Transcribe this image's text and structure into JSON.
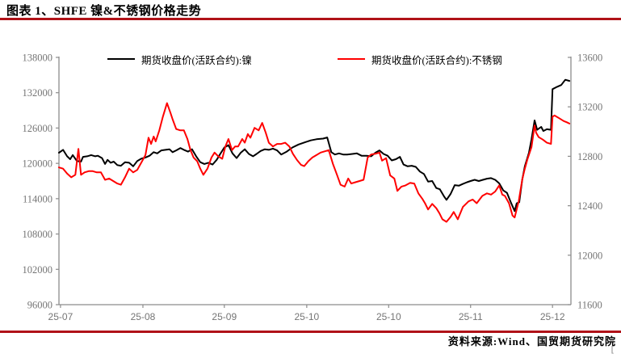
{
  "title": "图表 1、SHFE 镍&不锈钢价格走势",
  "source_note": "资料来源:Wind、国贸期货研究院",
  "corner_glyph": "[",
  "colors": {
    "accent_red": "#b01218",
    "nickel": "#000000",
    "stainless": "#ff0000",
    "axis": "#8c8c8c",
    "tick_label": "#757575"
  },
  "chart_data": {
    "type": "line",
    "title": "SHFE 镍&不锈钢价格走势",
    "grid": false,
    "legend_position": "top",
    "legend": [
      {
        "id": "nickel",
        "label": "期货收盘价(活跃合约):镍",
        "color": "#000000"
      },
      {
        "id": "stainless",
        "label": "期货收盘价(活跃合约):不锈钢",
        "color": "#ff0000"
      }
    ],
    "left_axis": {
      "min": 96000,
      "max": 138000,
      "step": 6000,
      "ticks": [
        138000,
        132000,
        126000,
        120000,
        114000,
        108000,
        102000,
        96000
      ]
    },
    "right_axis": {
      "min": 11600,
      "max": 13600,
      "step": 400,
      "ticks": [
        13600,
        13200,
        12800,
        12400,
        12000,
        11600
      ]
    },
    "x_tick_labels": [
      "25-07",
      "25-08",
      "25-09",
      "25-10",
      "25-10",
      "25-11",
      "25-12"
    ],
    "x_tick_positions": [
      0.003,
      0.164,
      0.323,
      0.484,
      0.644,
      0.804,
      0.964
    ],
    "series": [
      {
        "id": "nickel",
        "name": "期货收盘价(活跃合约):镍",
        "axis": "left",
        "color": "#000000",
        "points": [
          [
            0.0,
            121800
          ],
          [
            0.008,
            122300
          ],
          [
            0.016,
            121200
          ],
          [
            0.022,
            120700
          ],
          [
            0.027,
            121400
          ],
          [
            0.035,
            120400
          ],
          [
            0.043,
            120300
          ],
          [
            0.047,
            121100
          ],
          [
            0.055,
            121200
          ],
          [
            0.063,
            121400
          ],
          [
            0.071,
            121200
          ],
          [
            0.076,
            121300
          ],
          [
            0.084,
            120900
          ],
          [
            0.09,
            119900
          ],
          [
            0.095,
            120600
          ],
          [
            0.101,
            120100
          ],
          [
            0.107,
            120300
          ],
          [
            0.114,
            119700
          ],
          [
            0.121,
            119600
          ],
          [
            0.129,
            120200
          ],
          [
            0.137,
            120100
          ],
          [
            0.145,
            119500
          ],
          [
            0.153,
            120400
          ],
          [
            0.161,
            120800
          ],
          [
            0.169,
            121000
          ],
          [
            0.177,
            121300
          ],
          [
            0.185,
            121900
          ],
          [
            0.192,
            121700
          ],
          [
            0.2,
            122200
          ],
          [
            0.208,
            122300
          ],
          [
            0.216,
            122400
          ],
          [
            0.222,
            121900
          ],
          [
            0.229,
            122200
          ],
          [
            0.237,
            122600
          ],
          [
            0.244,
            122300
          ],
          [
            0.252,
            122000
          ],
          [
            0.26,
            122400
          ],
          [
            0.268,
            121200
          ],
          [
            0.276,
            120200
          ],
          [
            0.284,
            119900
          ],
          [
            0.292,
            120100
          ],
          [
            0.3,
            119800
          ],
          [
            0.308,
            120600
          ],
          [
            0.315,
            121600
          ],
          [
            0.323,
            122700
          ],
          [
            0.331,
            123100
          ],
          [
            0.339,
            121700
          ],
          [
            0.347,
            120900
          ],
          [
            0.355,
            121800
          ],
          [
            0.363,
            122400
          ],
          [
            0.371,
            121600
          ],
          [
            0.379,
            121200
          ],
          [
            0.386,
            121600
          ],
          [
            0.394,
            122100
          ],
          [
            0.402,
            122400
          ],
          [
            0.41,
            122300
          ],
          [
            0.418,
            122500
          ],
          [
            0.426,
            122200
          ],
          [
            0.434,
            121500
          ],
          [
            0.445,
            122000
          ],
          [
            0.456,
            122700
          ],
          [
            0.468,
            123200
          ],
          [
            0.481,
            123600
          ],
          [
            0.492,
            123900
          ],
          [
            0.503,
            124100
          ],
          [
            0.516,
            124200
          ],
          [
            0.524,
            124400
          ],
          [
            0.532,
            121900
          ],
          [
            0.539,
            121500
          ],
          [
            0.547,
            121700
          ],
          [
            0.555,
            121500
          ],
          [
            0.563,
            121500
          ],
          [
            0.573,
            121600
          ],
          [
            0.582,
            121700
          ],
          [
            0.591,
            121300
          ],
          [
            0.601,
            121300
          ],
          [
            0.61,
            121200
          ],
          [
            0.618,
            121800
          ],
          [
            0.626,
            122200
          ],
          [
            0.634,
            121600
          ],
          [
            0.642,
            121300
          ],
          [
            0.65,
            120500
          ],
          [
            0.658,
            120700
          ],
          [
            0.666,
            121100
          ],
          [
            0.673,
            119800
          ],
          [
            0.681,
            119500
          ],
          [
            0.689,
            119600
          ],
          [
            0.697,
            119400
          ],
          [
            0.705,
            118600
          ],
          [
            0.713,
            118200
          ],
          [
            0.721,
            116900
          ],
          [
            0.729,
            117000
          ],
          [
            0.737,
            115800
          ],
          [
            0.744,
            115600
          ],
          [
            0.752,
            114400
          ],
          [
            0.757,
            113800
          ],
          [
            0.765,
            114800
          ],
          [
            0.773,
            116300
          ],
          [
            0.781,
            116200
          ],
          [
            0.789,
            116500
          ],
          [
            0.797,
            116800
          ],
          [
            0.804,
            117000
          ],
          [
            0.812,
            117200
          ],
          [
            0.82,
            117000
          ],
          [
            0.828,
            117200
          ],
          [
            0.836,
            117400
          ],
          [
            0.844,
            117500
          ],
          [
            0.852,
            117200
          ],
          [
            0.86,
            116600
          ],
          [
            0.868,
            115400
          ],
          [
            0.875,
            115000
          ],
          [
            0.882,
            113500
          ],
          [
            0.89,
            111900
          ],
          [
            0.894,
            113200
          ],
          [
            0.899,
            113400
          ],
          [
            0.905,
            117300
          ],
          [
            0.91,
            119500
          ],
          [
            0.918,
            121800
          ],
          [
            0.923,
            124100
          ],
          [
            0.929,
            127300
          ],
          [
            0.934,
            125700
          ],
          [
            0.942,
            126200
          ],
          [
            0.946,
            125500
          ],
          [
            0.953,
            125800
          ],
          [
            0.961,
            125700
          ],
          [
            0.964,
            132600
          ],
          [
            0.973,
            133000
          ],
          [
            0.981,
            133300
          ],
          [
            0.989,
            134200
          ],
          [
            0.997,
            134000
          ]
        ]
      },
      {
        "id": "stainless",
        "name": "期货收盘价(活跃合约):不锈钢",
        "axis": "right",
        "color": "#ff0000",
        "points": [
          [
            0.0,
            12710
          ],
          [
            0.008,
            12700
          ],
          [
            0.016,
            12660
          ],
          [
            0.024,
            12630
          ],
          [
            0.032,
            12650
          ],
          [
            0.038,
            12860
          ],
          [
            0.043,
            12650
          ],
          [
            0.05,
            12670
          ],
          [
            0.058,
            12680
          ],
          [
            0.066,
            12680
          ],
          [
            0.074,
            12670
          ],
          [
            0.082,
            12670
          ],
          [
            0.09,
            12610
          ],
          [
            0.098,
            12620
          ],
          [
            0.106,
            12600
          ],
          [
            0.114,
            12580
          ],
          [
            0.121,
            12570
          ],
          [
            0.129,
            12630
          ],
          [
            0.137,
            12700
          ],
          [
            0.145,
            12670
          ],
          [
            0.153,
            12690
          ],
          [
            0.161,
            12750
          ],
          [
            0.169,
            12810
          ],
          [
            0.175,
            12950
          ],
          [
            0.18,
            12900
          ],
          [
            0.185,
            12960
          ],
          [
            0.189,
            12920
          ],
          [
            0.196,
            13010
          ],
          [
            0.203,
            13120
          ],
          [
            0.211,
            13230
          ],
          [
            0.218,
            13150
          ],
          [
            0.222,
            13100
          ],
          [
            0.229,
            13020
          ],
          [
            0.237,
            13010
          ],
          [
            0.244,
            13010
          ],
          [
            0.251,
            12940
          ],
          [
            0.257,
            12850
          ],
          [
            0.263,
            12790
          ],
          [
            0.27,
            12760
          ],
          [
            0.276,
            12700
          ],
          [
            0.282,
            12650
          ],
          [
            0.29,
            12700
          ],
          [
            0.298,
            12790
          ],
          [
            0.304,
            12830
          ],
          [
            0.311,
            12800
          ],
          [
            0.319,
            12780
          ],
          [
            0.325,
            12880
          ],
          [
            0.331,
            12940
          ],
          [
            0.338,
            12850
          ],
          [
            0.344,
            12880
          ],
          [
            0.35,
            12880
          ],
          [
            0.358,
            12940
          ],
          [
            0.363,
            12910
          ],
          [
            0.369,
            12980
          ],
          [
            0.374,
            12950
          ],
          [
            0.382,
            13030
          ],
          [
            0.39,
            13010
          ],
          [
            0.397,
            13070
          ],
          [
            0.404,
            12990
          ],
          [
            0.41,
            12910
          ],
          [
            0.418,
            12880
          ],
          [
            0.426,
            12900
          ],
          [
            0.434,
            12900
          ],
          [
            0.442,
            12910
          ],
          [
            0.45,
            12880
          ],
          [
            0.457,
            12820
          ],
          [
            0.465,
            12770
          ],
          [
            0.473,
            12730
          ],
          [
            0.479,
            12720
          ],
          [
            0.487,
            12760
          ],
          [
            0.495,
            12790
          ],
          [
            0.503,
            12810
          ],
          [
            0.511,
            12830
          ],
          [
            0.519,
            12840
          ],
          [
            0.527,
            12850
          ],
          [
            0.535,
            12740
          ],
          [
            0.543,
            12650
          ],
          [
            0.55,
            12570
          ],
          [
            0.558,
            12555
          ],
          [
            0.565,
            12620
          ],
          [
            0.571,
            12580
          ],
          [
            0.579,
            12590
          ],
          [
            0.587,
            12600
          ],
          [
            0.595,
            12610
          ],
          [
            0.603,
            12790
          ],
          [
            0.61,
            12815
          ],
          [
            0.618,
            12820
          ],
          [
            0.626,
            12830
          ],
          [
            0.631,
            12765
          ],
          [
            0.639,
            12785
          ],
          [
            0.647,
            12645
          ],
          [
            0.655,
            12620
          ],
          [
            0.661,
            12520
          ],
          [
            0.669,
            12555
          ],
          [
            0.677,
            12565
          ],
          [
            0.686,
            12585
          ],
          [
            0.694,
            12580
          ],
          [
            0.702,
            12500
          ],
          [
            0.71,
            12455
          ],
          [
            0.715,
            12420
          ],
          [
            0.721,
            12370
          ],
          [
            0.729,
            12415
          ],
          [
            0.737,
            12380
          ],
          [
            0.743,
            12340
          ],
          [
            0.749,
            12290
          ],
          [
            0.757,
            12270
          ],
          [
            0.765,
            12310
          ],
          [
            0.771,
            12350
          ],
          [
            0.779,
            12290
          ],
          [
            0.789,
            12390
          ],
          [
            0.8,
            12435
          ],
          [
            0.808,
            12450
          ],
          [
            0.816,
            12420
          ],
          [
            0.827,
            12480
          ],
          [
            0.836,
            12500
          ],
          [
            0.844,
            12490
          ],
          [
            0.852,
            12515
          ],
          [
            0.86,
            12565
          ],
          [
            0.866,
            12490
          ],
          [
            0.871,
            12480
          ],
          [
            0.879,
            12420
          ],
          [
            0.886,
            12320
          ],
          [
            0.89,
            12305
          ],
          [
            0.898,
            12435
          ],
          [
            0.905,
            12615
          ],
          [
            0.91,
            12700
          ],
          [
            0.915,
            12775
          ],
          [
            0.923,
            12875
          ],
          [
            0.929,
            13050
          ],
          [
            0.932,
            12990
          ],
          [
            0.937,
            12955
          ],
          [
            0.945,
            12935
          ],
          [
            0.953,
            12910
          ],
          [
            0.961,
            12900
          ],
          [
            0.964,
            13120
          ],
          [
            0.968,
            13130
          ],
          [
            0.978,
            13105
          ],
          [
            0.986,
            13085
          ],
          [
            0.992,
            13075
          ],
          [
            0.997,
            13065
          ]
        ]
      }
    ]
  }
}
